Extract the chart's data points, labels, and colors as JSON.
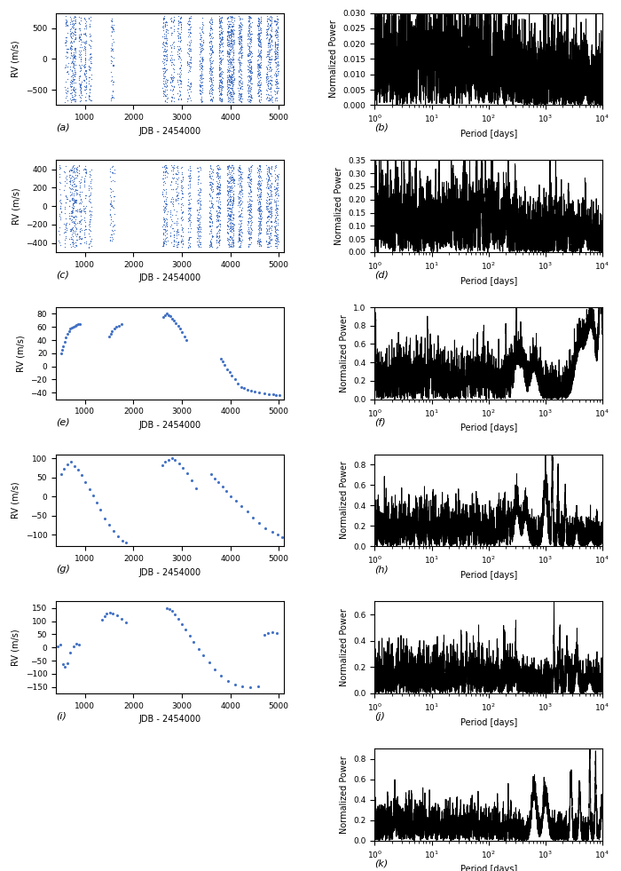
{
  "scatter_color": "#4472C4",
  "line_color": "black",
  "line_lw": 0.7,
  "bg_color": "white",
  "panels": [
    {
      "label_left": "(a)",
      "label_right": "(b)",
      "ylabel": "RV (m/s)",
      "xlabel": "JDB - 2454000",
      "ylim": [
        -750,
        750
      ],
      "yticks": [
        -500,
        0,
        500
      ],
      "xlim": [
        400,
        5100
      ],
      "xticks": [
        1000,
        2000,
        3000,
        4000,
        5000
      ],
      "pgram_ylim": [
        0,
        0.03
      ],
      "pgram_yticks": [
        0.0,
        0.005,
        0.01,
        0.015,
        0.02,
        0.025,
        0.03
      ],
      "pgram_ylabel": "Normalized Power",
      "has_scatter": true
    },
    {
      "label_left": "(c)",
      "label_right": "(d)",
      "ylabel": "RV (m/s)",
      "xlabel": "JDB - 2454000",
      "ylim": [
        -500,
        500
      ],
      "yticks": [
        -400,
        -200,
        0,
        200,
        400
      ],
      "xlim": [
        400,
        5100
      ],
      "xticks": [
        1000,
        2000,
        3000,
        4000,
        5000
      ],
      "pgram_ylim": [
        0,
        0.35
      ],
      "pgram_yticks": [
        0.0,
        0.05,
        0.1,
        0.15,
        0.2,
        0.25,
        0.3,
        0.35
      ],
      "pgram_ylabel": "Normalized Power",
      "has_scatter": true
    },
    {
      "label_left": "(e)",
      "label_right": "(f)",
      "ylabel": "RV (m/s)",
      "xlabel": "JDB - 2454000",
      "ylim": [
        -50,
        90
      ],
      "yticks": [
        -40,
        -20,
        0,
        20,
        40,
        60,
        80
      ],
      "xlim": [
        400,
        5100
      ],
      "xticks": [
        1000,
        2000,
        3000,
        4000,
        5000
      ],
      "pgram_ylim": [
        0,
        1.0
      ],
      "pgram_yticks": [
        0.0,
        0.2,
        0.4,
        0.6,
        0.8,
        1.0
      ],
      "pgram_ylabel": "Normalized Power",
      "has_scatter": false
    },
    {
      "label_left": "(g)",
      "label_right": "(h)",
      "ylabel": "RV (m/s)",
      "xlabel": "JDB - 2454000",
      "ylim": [
        -130,
        110
      ],
      "yticks": [
        -100,
        -50,
        0,
        50,
        100
      ],
      "xlim": [
        400,
        5100
      ],
      "xticks": [
        1000,
        2000,
        3000,
        4000,
        5000
      ],
      "pgram_ylim": [
        0,
        0.9
      ],
      "pgram_yticks": [
        0.0,
        0.2,
        0.4,
        0.6,
        0.8
      ],
      "pgram_ylabel": "Normalized Power",
      "has_scatter": false
    },
    {
      "label_left": "(i)",
      "label_right": "(j)",
      "ylabel": "RV (m/s)",
      "xlabel": "JDB - 2454000",
      "ylim": [
        -175,
        175
      ],
      "yticks": [
        -150,
        -100,
        -50,
        0,
        50,
        100,
        150
      ],
      "xlim": [
        400,
        5100
      ],
      "xticks": [
        1000,
        2000,
        3000,
        4000,
        5000
      ],
      "pgram_ylim": [
        0,
        0.7
      ],
      "pgram_yticks": [
        0.0,
        0.2,
        0.4,
        0.6
      ],
      "pgram_ylabel": "Normalized Power",
      "has_scatter": false
    },
    {
      "label_left": null,
      "label_right": "(k)",
      "pgram_ylim": [
        0,
        0.9
      ],
      "pgram_yticks": [
        0.0,
        0.2,
        0.4,
        0.6,
        0.8
      ],
      "pgram_ylabel": "Normalized Power",
      "only_pgram": true
    }
  ]
}
